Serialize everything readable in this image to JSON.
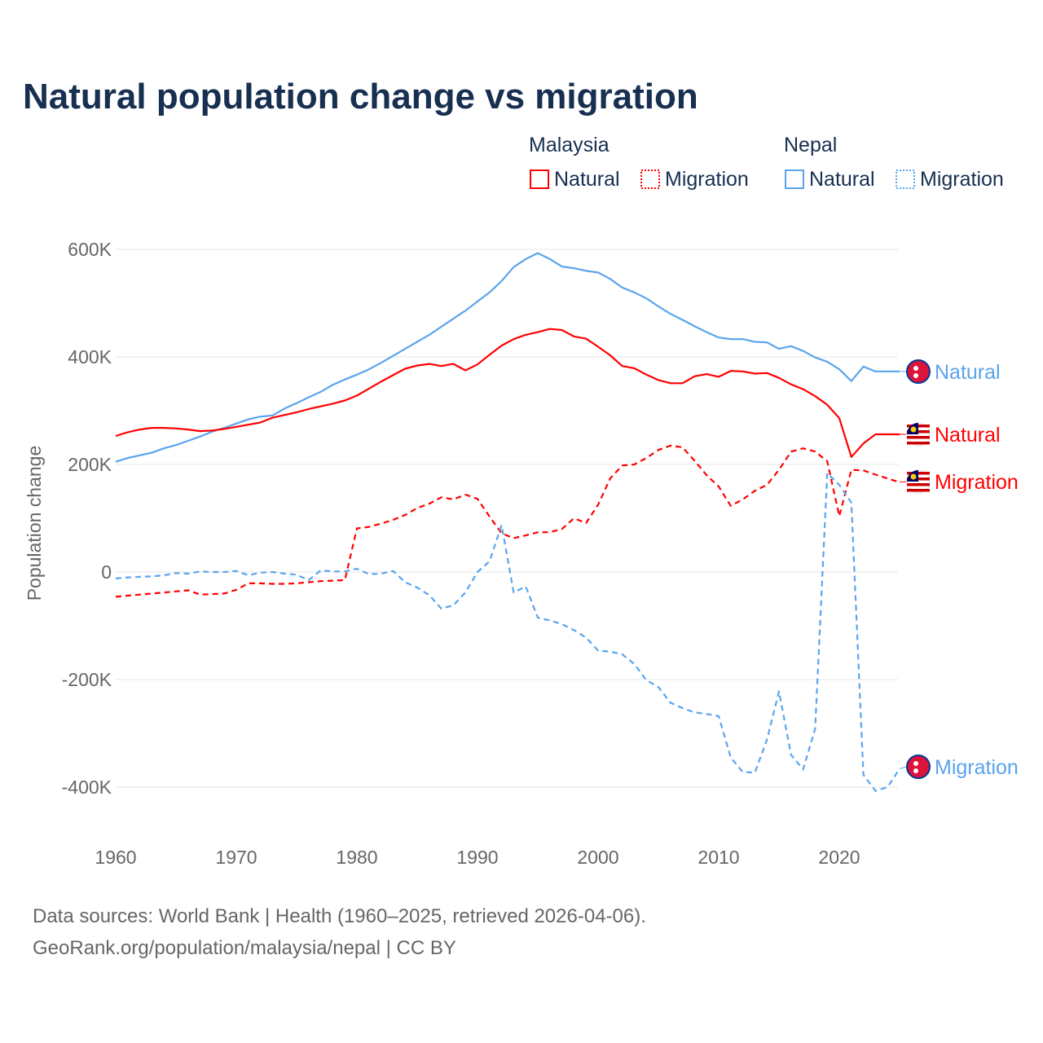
{
  "chart_data": {
    "type": "line",
    "title": "Natural population change vs migration",
    "xlabel": "",
    "ylabel": "Population change",
    "xlim": [
      1960,
      2025
    ],
    "ylim": [
      -400000,
      600000
    ],
    "x_ticks": [
      1960,
      1970,
      1980,
      1990,
      2000,
      2010,
      2020
    ],
    "y_ticks": [
      600000,
      400000,
      200000,
      0,
      -200000,
      -400000
    ],
    "y_tick_labels": [
      "600K",
      "400K",
      "200K",
      "0",
      "-200K",
      "-400K"
    ],
    "grid": true,
    "legend": {
      "placement": "top-right",
      "groups": [
        {
          "name": "Malaysia",
          "items": [
            "Natural",
            "Migration"
          ]
        },
        {
          "name": "Nepal",
          "items": [
            "Natural",
            "Migration"
          ]
        }
      ]
    },
    "x": [
      1960,
      1961,
      1962,
      1963,
      1964,
      1965,
      1966,
      1967,
      1968,
      1969,
      1970,
      1971,
      1972,
      1973,
      1974,
      1975,
      1976,
      1977,
      1978,
      1979,
      1980,
      1981,
      1982,
      1983,
      1984,
      1985,
      1986,
      1987,
      1988,
      1989,
      1990,
      1991,
      1992,
      1993,
      1994,
      1995,
      1996,
      1997,
      1998,
      1999,
      2000,
      2001,
      2002,
      2003,
      2004,
      2005,
      2006,
      2007,
      2008,
      2009,
      2010,
      2011,
      2012,
      2013,
      2014,
      2015,
      2016,
      2017,
      2018,
      2019,
      2020,
      2021,
      2022,
      2023,
      2024,
      2025
    ],
    "series": [
      {
        "name": "Nepal Natural",
        "country": "Nepal",
        "kind": "Natural",
        "color": "#5ba4ec",
        "dash": false,
        "end_label": "Natural",
        "values_k": [
          205,
          212,
          217,
          222,
          230,
          236,
          244,
          252,
          261,
          268,
          276,
          284,
          289,
          291,
          304,
          314,
          325,
          335,
          348,
          358,
          367,
          377,
          389,
          402,
          415,
          428,
          441,
          456,
          471,
          486,
          503,
          520,
          541,
          567,
          582,
          593,
          582,
          568,
          565,
          560,
          557,
          545,
          529,
          520,
          509,
          494,
          480,
          469,
          457,
          446,
          436,
          433,
          433,
          428,
          427,
          415,
          420,
          411,
          399,
          391,
          377,
          355,
          382,
          373,
          373,
          373
        ]
      },
      {
        "name": "Malaysia Natural",
        "country": "Malaysia",
        "kind": "Natural",
        "color": "#ff0000",
        "dash": false,
        "end_label": "Natural",
        "values_k": [
          253,
          260,
          265,
          268,
          268,
          267,
          265,
          262,
          263,
          266,
          270,
          274,
          278,
          287,
          292,
          297,
          303,
          308,
          313,
          319,
          328,
          341,
          354,
          366,
          378,
          384,
          387,
          383,
          387,
          375,
          386,
          404,
          421,
          433,
          441,
          446,
          452,
          450,
          438,
          434,
          419,
          403,
          383,
          379,
          367,
          357,
          351,
          351,
          364,
          368,
          363,
          374,
          373,
          369,
          370,
          361,
          349,
          340,
          327,
          311,
          286,
          214,
          239,
          256,
          256,
          256
        ]
      },
      {
        "name": "Malaysia Migration",
        "country": "Malaysia",
        "kind": "Migration",
        "color": "#ff0000",
        "dash": true,
        "end_label": "Migration",
        "values_k": [
          -46,
          -44,
          -42,
          -40,
          -38,
          -36,
          -34,
          -42,
          -41,
          -40,
          -33,
          -21,
          -21,
          -22,
          -22,
          -21,
          -19,
          -17,
          -16,
          -15,
          81,
          84,
          90,
          97,
          106,
          119,
          127,
          139,
          135,
          144,
          136,
          103,
          72,
          63,
          68,
          74,
          74,
          80,
          100,
          91,
          125,
          174,
          198,
          200,
          212,
          227,
          235,
          232,
          207,
          180,
          159,
          123,
          135,
          151,
          162,
          190,
          224,
          230,
          224,
          206,
          104,
          190,
          189,
          181,
          174,
          167
        ]
      },
      {
        "name": "Nepal Migration",
        "country": "Nepal",
        "kind": "Migration",
        "color": "#5ba4ec",
        "dash": true,
        "end_label": "Migration",
        "values_k": [
          -12,
          -10,
          -9,
          -8,
          -6,
          -2,
          -3,
          1,
          0,
          0,
          2,
          -6,
          -1,
          0,
          -3,
          -5,
          -15,
          3,
          1,
          1,
          6,
          -4,
          -3,
          2,
          -19,
          -29,
          -43,
          -68,
          -62,
          -38,
          0,
          20,
          87,
          -38,
          -27,
          -85,
          -90,
          -97,
          -108,
          -122,
          -146,
          -148,
          -153,
          -171,
          -201,
          -214,
          -243,
          -253,
          -261,
          -264,
          -268,
          -345,
          -372,
          -373,
          -312,
          -222,
          -340,
          -367,
          -291,
          184,
          162,
          129,
          -377,
          -407,
          -400,
          -366
        ]
      }
    ],
    "colors": {
      "malaysia": "#ff0000",
      "nepal": "#5ba4ec",
      "title": "#172f50",
      "grid": "#e6e6e6",
      "muted": "#666666"
    }
  },
  "legend": {
    "malaysia_heading": "Malaysia",
    "nepal_heading": "Nepal",
    "natural": "Natural",
    "migration": "Migration"
  },
  "footer": {
    "source": "Data sources: World Bank | Health (1960–2025, retrieved 2026-04-06).",
    "credit": "GeoRank.org/population/malaysia/nepal | CC BY"
  }
}
